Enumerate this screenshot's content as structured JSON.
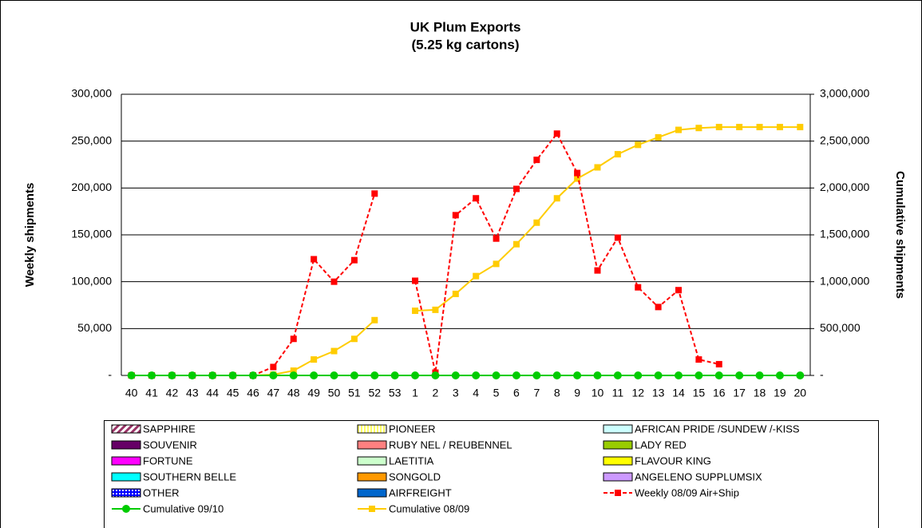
{
  "chart_data": {
    "type": "bar",
    "title": [
      "UK Plum Exports",
      "(5.25 kg cartons)"
    ],
    "y_label": "Weekly shipments",
    "y2_label": "Cumulative shipments",
    "categories": [
      "40",
      "41",
      "42",
      "43",
      "44",
      "45",
      "46",
      "47",
      "48",
      "49",
      "50",
      "51",
      "52",
      "53",
      "1",
      "2",
      "3",
      "4",
      "5",
      "6",
      "7",
      "8",
      "9",
      "10",
      "11",
      "12",
      "13",
      "14",
      "15",
      "16",
      "17",
      "18",
      "19",
      "20"
    ],
    "ylim": [
      0,
      300000
    ],
    "yticks": [
      {
        "value": 0,
        "label": "-"
      },
      {
        "value": 50000,
        "label": "50,000"
      },
      {
        "value": 100000,
        "label": "100,000"
      },
      {
        "value": 150000,
        "label": "150,000"
      },
      {
        "value": 200000,
        "label": "200,000"
      },
      {
        "value": 250000,
        "label": "250,000"
      },
      {
        "value": 300000,
        "label": "300,000"
      }
    ],
    "y2lim": [
      0,
      3000000
    ],
    "y2ticks": [
      {
        "value": 0,
        "label": "-"
      },
      {
        "value": 500000,
        "label": "500,000"
      },
      {
        "value": 1000000,
        "label": "1,000,000"
      },
      {
        "value": 1500000,
        "label": "1,500,000"
      },
      {
        "value": 2000000,
        "label": "2,000,000"
      },
      {
        "value": 2500000,
        "label": "2,500,000"
      },
      {
        "value": 3000000,
        "label": "3,000,000"
      }
    ],
    "grid": true,
    "stacked": true,
    "series": [
      {
        "name": "SAPPHIRE",
        "type": "bar",
        "color": "#993366",
        "pattern": "hatch",
        "values": [
          0,
          0,
          0,
          0,
          0,
          0,
          0,
          0,
          0,
          0,
          0,
          0,
          0,
          0,
          0,
          0,
          0,
          0,
          0,
          0,
          0,
          0,
          0,
          0,
          0,
          0,
          0,
          0,
          0,
          0,
          0,
          0,
          0,
          0
        ]
      },
      {
        "name": "PIONEER",
        "type": "bar",
        "color": "#ffff66",
        "pattern": "stripes",
        "values": [
          0,
          0,
          0,
          0,
          0,
          0,
          0,
          0,
          0,
          0,
          0,
          0,
          0,
          0,
          0,
          0,
          0,
          0,
          0,
          0,
          0,
          0,
          0,
          0,
          0,
          0,
          0,
          0,
          0,
          0,
          0,
          0,
          0,
          0
        ]
      },
      {
        "name": "AFRICAN PRIDE /SUNDEW /-KISS",
        "type": "bar",
        "color": "#ccffff",
        "values": [
          0,
          0,
          0,
          0,
          0,
          0,
          0,
          0,
          0,
          0,
          0,
          0,
          0,
          0,
          0,
          0,
          0,
          0,
          0,
          0,
          0,
          0,
          0,
          0,
          0,
          0,
          0,
          0,
          0,
          0,
          0,
          0,
          0,
          0
        ]
      },
      {
        "name": "SOUVENIR",
        "type": "bar",
        "color": "#660066",
        "values": [
          0,
          0,
          0,
          0,
          0,
          0,
          0,
          0,
          0,
          0,
          0,
          0,
          0,
          0,
          0,
          0,
          0,
          0,
          0,
          0,
          0,
          0,
          0,
          0,
          0,
          0,
          0,
          0,
          0,
          0,
          0,
          0,
          0,
          0
        ]
      },
      {
        "name": "RUBY NEL / REUBENNEL",
        "type": "bar",
        "color": "#ff8080",
        "values": [
          0,
          0,
          0,
          0,
          0,
          0,
          0,
          0,
          0,
          0,
          0,
          0,
          0,
          0,
          0,
          0,
          0,
          0,
          0,
          0,
          0,
          0,
          0,
          0,
          0,
          0,
          0,
          0,
          0,
          0,
          0,
          0,
          0,
          0
        ]
      },
      {
        "name": "LADY RED",
        "type": "bar",
        "color": "#99cc00",
        "values": [
          0,
          0,
          0,
          0,
          0,
          0,
          0,
          0,
          0,
          0,
          0,
          0,
          0,
          0,
          0,
          0,
          0,
          0,
          0,
          0,
          0,
          0,
          0,
          0,
          0,
          0,
          0,
          0,
          0,
          0,
          0,
          0,
          0,
          0
        ]
      },
      {
        "name": "FORTUNE",
        "type": "bar",
        "color": "#ff00ff",
        "values": [
          0,
          0,
          0,
          0,
          0,
          0,
          0,
          0,
          0,
          0,
          0,
          0,
          0,
          0,
          0,
          0,
          0,
          0,
          0,
          0,
          0,
          0,
          0,
          0,
          0,
          0,
          0,
          0,
          0,
          0,
          0,
          0,
          0,
          0
        ]
      },
      {
        "name": "LAETITIA",
        "type": "bar",
        "color": "#ccffcc",
        "values": [
          0,
          0,
          0,
          0,
          0,
          0,
          0,
          0,
          0,
          0,
          0,
          0,
          0,
          0,
          0,
          0,
          0,
          0,
          0,
          0,
          0,
          0,
          0,
          0,
          0,
          0,
          0,
          0,
          0,
          0,
          0,
          0,
          0,
          0
        ]
      },
      {
        "name": "FLAVOUR KING",
        "type": "bar",
        "color": "#ffff00",
        "values": [
          0,
          0,
          0,
          0,
          0,
          0,
          0,
          0,
          0,
          0,
          0,
          0,
          0,
          0,
          0,
          0,
          0,
          0,
          0,
          0,
          0,
          0,
          0,
          0,
          0,
          0,
          0,
          0,
          0,
          0,
          0,
          0,
          0,
          0
        ]
      },
      {
        "name": "SOUTHERN BELLE",
        "type": "bar",
        "color": "#00ffff",
        "values": [
          0,
          0,
          0,
          0,
          0,
          0,
          0,
          0,
          0,
          0,
          0,
          0,
          0,
          0,
          0,
          0,
          0,
          0,
          0,
          0,
          0,
          0,
          0,
          0,
          0,
          0,
          0,
          0,
          0,
          0,
          0,
          0,
          0,
          0
        ]
      },
      {
        "name": "SONGOLD",
        "type": "bar",
        "color": "#ff9900",
        "values": [
          0,
          0,
          0,
          0,
          0,
          0,
          0,
          0,
          0,
          0,
          0,
          0,
          0,
          0,
          0,
          0,
          0,
          0,
          0,
          0,
          0,
          0,
          0,
          0,
          0,
          0,
          0,
          0,
          0,
          0,
          0,
          0,
          0,
          0
        ]
      },
      {
        "name": "ANGELENO SUPPLUMSIX",
        "type": "bar",
        "color": "#cc99ff",
        "values": [
          0,
          0,
          0,
          0,
          0,
          0,
          0,
          0,
          0,
          0,
          0,
          0,
          0,
          0,
          0,
          0,
          0,
          0,
          0,
          0,
          0,
          0,
          0,
          0,
          0,
          0,
          0,
          0,
          0,
          0,
          0,
          0,
          0,
          0
        ]
      },
      {
        "name": "OTHER",
        "type": "bar",
        "color": "#0000ff",
        "pattern": "dots",
        "values": [
          0,
          0,
          0,
          0,
          0,
          0,
          0,
          0,
          0,
          0,
          0,
          0,
          0,
          0,
          0,
          0,
          0,
          0,
          0,
          0,
          0,
          0,
          0,
          0,
          0,
          0,
          0,
          0,
          0,
          0,
          0,
          0,
          0,
          0
        ]
      },
      {
        "name": "AIRFREIGHT",
        "type": "bar",
        "color": "#0066cc",
        "values": [
          0,
          0,
          0,
          0,
          0,
          0,
          0,
          0,
          0,
          0,
          0,
          0,
          0,
          0,
          0,
          0,
          0,
          0,
          0,
          0,
          0,
          0,
          0,
          0,
          0,
          0,
          0,
          0,
          0,
          0,
          0,
          0,
          0,
          0
        ]
      },
      {
        "name": "Weekly 08/09 Air+Ship",
        "type": "line",
        "color": "#ff0000",
        "dashed": true,
        "marker": "square",
        "values": [
          0,
          0,
          0,
          0,
          0,
          0,
          0,
          9000,
          39000,
          124000,
          100000,
          123000,
          194000,
          null,
          101000,
          3000,
          171000,
          189000,
          146000,
          199000,
          230000,
          258000,
          216000,
          112000,
          147000,
          94000,
          73000,
          91000,
          17000,
          12000,
          null,
          null,
          null,
          null
        ]
      },
      {
        "name": "Cumulative 09/10",
        "type": "line",
        "color": "#00cc00",
        "marker": "circle",
        "values": [
          0,
          0,
          0,
          0,
          0,
          0,
          0,
          0,
          0,
          0,
          0,
          0,
          0,
          0,
          0,
          0,
          0,
          0,
          0,
          0,
          0,
          0,
          0,
          0,
          0,
          0,
          0,
          0,
          0,
          0,
          0,
          0,
          0,
          0
        ]
      },
      {
        "name": "Cumulative 08/09",
        "type": "line",
        "axis": "y2",
        "color": "#ffcc00",
        "marker": "square",
        "values": [
          0,
          0,
          0,
          0,
          0,
          0,
          0,
          9000,
          51000,
          170000,
          260000,
          390000,
          590000,
          null,
          690000,
          700000,
          870000,
          1060000,
          1190000,
          1400000,
          1630000,
          1890000,
          2100000,
          2220000,
          2360000,
          2460000,
          2540000,
          2620000,
          2640000,
          2650000,
          2650000,
          2650000,
          2650000,
          2650000
        ]
      }
    ]
  }
}
